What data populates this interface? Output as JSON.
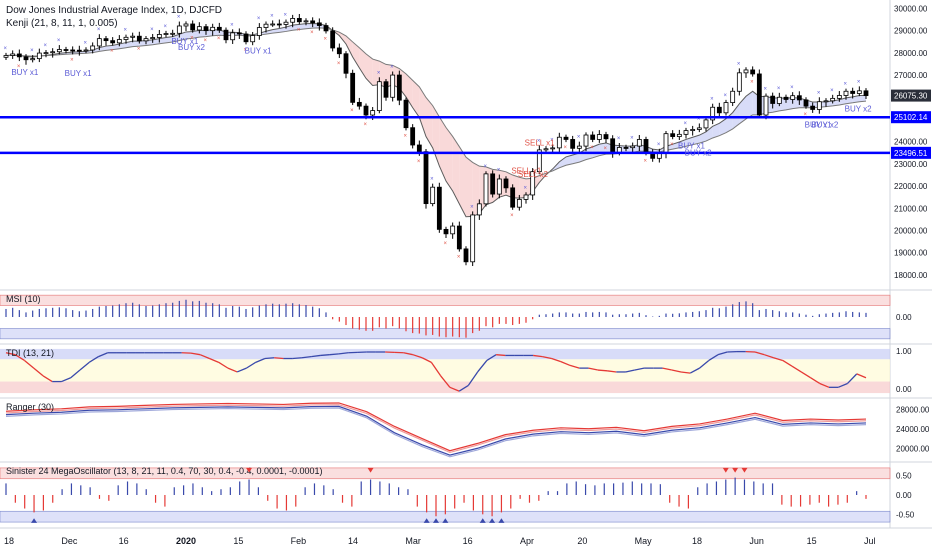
{
  "header": {
    "symbol_line": "Dow Jones Industrial Average Index, 1D, DJCFD",
    "indicator_line": "Kenji (21, 8, 11, 1, 0.005)"
  },
  "colors": {
    "level_line": "#0000ff",
    "buy_signal": "#5b5bd6",
    "sell_signal": "#e0564a",
    "band_blue": "#c8cdf5",
    "band_red": "#f7c9c9",
    "band_yellow": "#fffbd6",
    "line_blue": "#3949ab",
    "line_red": "#e53935",
    "axis_text": "#131722"
  },
  "chart_data": [
    {
      "type": "candlestick",
      "title": "Dow Jones Industrial Average Index, 1D, DJCFD",
      "subtitle": "Kenji (21, 8, 11, 1, 0.005)",
      "x_ticks": [
        "18",
        "Dec",
        "16",
        "2020",
        "15",
        "Feb",
        "14",
        "Mar",
        "16",
        "Apr",
        "20",
        "May",
        "18",
        "Jun",
        "15",
        "Jul"
      ],
      "y_ticks": [
        "30000.00",
        "29000.00",
        "28000.00",
        "27000.00",
        "26075.30",
        "25102.14",
        "24000.00",
        "23496.51",
        "23000.00",
        "22000.00",
        "21000.00",
        "20000.00",
        "19000.00",
        "18000.00"
      ],
      "ylim": [
        17500,
        30200
      ],
      "horizontal_levels": [
        25102.14,
        23496.51
      ],
      "last_price": 26075.3,
      "close_values": [
        27880,
        27950,
        27820,
        27690,
        27740,
        27990,
        28010,
        28050,
        28150,
        28130,
        28120,
        28100,
        28130,
        28310,
        28640,
        28550,
        28450,
        28600,
        28700,
        28750,
        28540,
        28640,
        28690,
        28830,
        28870,
        28880,
        29210,
        29300,
        29030,
        29180,
        29000,
        29150,
        29020,
        28590,
        28900,
        28850,
        28500,
        28780,
        29140,
        29290,
        29300,
        29280,
        29380,
        29550,
        29400,
        29440,
        29350,
        29230,
        28990,
        28220,
        27960,
        27080,
        25770,
        25600,
        25200,
        25400,
        26700,
        26000,
        27000,
        25870,
        24630,
        23850,
        23550,
        21210,
        21950,
        20050,
        19850,
        20200,
        19170,
        18590,
        20700,
        21200,
        22550,
        21640,
        22320,
        21920,
        21050,
        21400,
        21600,
        22650,
        23630,
        23680,
        23720,
        24200,
        24100,
        23700,
        23800,
        24300,
        24100,
        24320,
        24130,
        23500,
        23740,
        23730,
        23800,
        24100,
        23500,
        23250,
        23480,
        24360,
        24230,
        24330,
        24500,
        24550,
        24620,
        24980,
        25550,
        25300,
        25760,
        26270,
        27100,
        27230,
        27050,
        25200,
        26050,
        25720,
        26000,
        25900,
        26070,
        25880,
        25600,
        25450,
        25800,
        25840,
        25950,
        26080,
        26270,
        26170,
        26290,
        26075
      ],
      "kenji_fast_line": {
        "from": 27700,
        "peak": 29350,
        "trough": 21300,
        "end": 25900
      },
      "kenji_slow_line": {
        "from": 27500,
        "peak": 29150,
        "trough": 20900,
        "end": 25700
      },
      "signals": [
        {
          "label": "BUY x1",
          "date": "Nov 18"
        },
        {
          "label": "BUY x1",
          "date": "Dec 1"
        },
        {
          "label": "BUY x1",
          "date": "Dec 24"
        },
        {
          "label": "BUY x2",
          "date": "Dec 26"
        },
        {
          "label": "BUY x1",
          "date": "Jan 14"
        },
        {
          "label": "SELL x1",
          "date": "Mar 23"
        },
        {
          "label": "SELL x2",
          "date": "Mar 24"
        },
        {
          "label": "SELL x1",
          "date": "Mar 25"
        },
        {
          "label": "BUY x1",
          "date": "May 4"
        },
        {
          "label": "BUY x2",
          "date": "May 5"
        },
        {
          "label": "BUY x1",
          "date": "Jun 12"
        },
        {
          "label": "BUY x2",
          "date": "Jun 15"
        },
        {
          "label": "BUY x2",
          "date": "Jul 8"
        }
      ]
    },
    {
      "type": "bar",
      "title": "MSI (10)",
      "y_ticks": [
        "0.00"
      ],
      "ylim": [
        -1.0,
        1.0
      ],
      "bands": [
        {
          "from": 0.5,
          "to": 0.95,
          "color": "red"
        },
        {
          "from": -0.95,
          "to": -0.5,
          "color": "blue"
        }
      ],
      "values_description_free": true,
      "values": [
        0.35,
        0.4,
        0.3,
        0.2,
        0.28,
        0.35,
        0.38,
        0.4,
        0.42,
        0.38,
        0.3,
        0.25,
        0.28,
        0.35,
        0.45,
        0.48,
        0.5,
        0.55,
        0.6,
        0.62,
        0.55,
        0.48,
        0.5,
        0.55,
        0.6,
        0.62,
        0.7,
        0.75,
        0.68,
        0.7,
        0.62,
        0.6,
        0.55,
        0.4,
        0.48,
        0.45,
        0.35,
        0.42,
        0.5,
        0.55,
        0.58,
        0.55,
        0.58,
        0.6,
        0.55,
        0.52,
        0.45,
        0.38,
        0.2,
        -0.1,
        -0.2,
        -0.35,
        -0.5,
        -0.55,
        -0.6,
        -0.6,
        -0.45,
        -0.5,
        -0.4,
        -0.5,
        -0.62,
        -0.7,
        -0.72,
        -0.8,
        -0.78,
        -0.85,
        -0.88,
        -0.85,
        -0.88,
        -0.9,
        -0.7,
        -0.6,
        -0.4,
        -0.45,
        -0.3,
        -0.3,
        -0.35,
        -0.3,
        -0.25,
        -0.1,
        0.1,
        0.12,
        0.15,
        0.2,
        0.2,
        0.15,
        0.15,
        0.22,
        0.2,
        0.22,
        0.2,
        0.1,
        0.12,
        0.12,
        0.15,
        0.18,
        0.08,
        0.02,
        0.05,
        0.15,
        0.14,
        0.16,
        0.2,
        0.22,
        0.25,
        0.3,
        0.4,
        0.38,
        0.45,
        0.55,
        0.65,
        0.68,
        0.6,
        0.3,
        0.35,
        0.3,
        0.25,
        0.2,
        0.2,
        0.15,
        0.1,
        0.05,
        0.12,
        0.15,
        0.18,
        0.2,
        0.25,
        0.22,
        0.2,
        0.18
      ]
    },
    {
      "type": "line",
      "title": "TDI (13, 21)",
      "y_ticks": [
        "1.00",
        "0.00"
      ],
      "ylim": [
        -0.15,
        1.1
      ],
      "bands": [
        {
          "from": 0.78,
          "to": 1.05,
          "color": "blue"
        },
        {
          "from": 0.2,
          "to": 0.78,
          "color": "yellow"
        },
        {
          "from": -0.1,
          "to": 0.2,
          "color": "red"
        }
      ],
      "series": [
        {
          "values": [
            0.95,
            0.9,
            0.75,
            0.55,
            0.35,
            0.2,
            0.2,
            0.3,
            0.5,
            0.7,
            0.85,
            0.95,
            0.95,
            0.95,
            0.95,
            0.95,
            0.95,
            0.95,
            0.95,
            0.95,
            0.94,
            0.9,
            0.8,
            0.7,
            0.55,
            0.45,
            0.55,
            0.7,
            0.8,
            0.82,
            0.8,
            0.8,
            0.82,
            0.85,
            0.88,
            0.9,
            0.92,
            0.95,
            0.96,
            0.97,
            0.97,
            0.97,
            0.96,
            0.95,
            0.9,
            0.82,
            0.7,
            0.35,
            0.05,
            -0.05,
            0.1,
            0.45,
            0.75,
            0.9,
            0.88,
            0.88,
            0.88,
            0.88,
            0.85,
            0.8,
            0.72,
            0.62,
            0.55,
            0.55,
            0.5,
            0.48,
            0.45,
            0.45,
            0.5,
            0.55,
            0.55,
            0.55,
            0.5,
            0.45,
            0.42,
            0.55,
            0.75,
            0.9,
            0.97,
            0.98,
            0.98,
            0.97,
            0.9,
            0.82,
            0.75,
            0.6,
            0.45,
            0.3,
            0.15,
            0.05,
            0.05,
            0.15,
            0.4,
            0.3
          ]
        }
      ]
    },
    {
      "type": "line",
      "title": "Ranger (30)",
      "y_ticks": [
        "28000.00",
        "24000.00",
        "20000.00"
      ],
      "ylim": [
        18000,
        29500
      ],
      "series": [
        {
          "name": "",
          "values": [
            27600,
            27900,
            28100,
            28500,
            28600,
            28800,
            29000,
            29100,
            29200,
            29100,
            29000,
            29250,
            29300,
            27500,
            24500,
            22000,
            19500,
            21000,
            22800,
            23700,
            24200,
            24000,
            24300,
            23600,
            24500,
            25000,
            26000,
            27200,
            25700,
            26000,
            25800,
            26000
          ]
        },
        {
          "name": "",
          "values": [
            26900,
            27200,
            27400,
            27800,
            27900,
            28100,
            28300,
            28400,
            28500,
            28400,
            28300,
            28550,
            28600,
            26600,
            23200,
            20700,
            18600,
            20000,
            21900,
            22900,
            23400,
            23200,
            23500,
            22800,
            23700,
            24200,
            25200,
            26300,
            24900,
            25200,
            25000,
            25200
          ]
        }
      ]
    },
    {
      "type": "bar",
      "title": "Sinister 24 MegaOscillator (13, 8, 21, 11, 0.4, 70, 30, 0.4, -0.4, 0.0001, -0.0001)",
      "y_ticks": [
        "0.50",
        "0.00",
        "-0.50"
      ],
      "ylim": [
        -0.75,
        0.75
      ],
      "bands": [
        {
          "from": 0.42,
          "to": 0.7,
          "color": "red"
        },
        {
          "from": -0.7,
          "to": -0.42,
          "color": "blue"
        }
      ],
      "values": [
        0.3,
        -0.2,
        -0.35,
        -0.45,
        -0.4,
        -0.2,
        0.15,
        0.3,
        0.25,
        0.2,
        -0.1,
        -0.15,
        0.25,
        0.35,
        0.3,
        0.15,
        -0.2,
        -0.3,
        0.2,
        0.25,
        0.3,
        0.2,
        0.1,
        0.15,
        0.2,
        0.35,
        0.4,
        0.2,
        -0.15,
        -0.35,
        -0.4,
        -0.3,
        0.2,
        0.3,
        0.25,
        0.15,
        -0.2,
        -0.3,
        0.35,
        0.4,
        0.35,
        0.3,
        0.2,
        0.15,
        -0.3,
        -0.45,
        -0.55,
        -0.5,
        -0.35,
        -0.2,
        -0.4,
        -0.5,
        -0.55,
        -0.45,
        -0.35,
        -0.1,
        -0.2,
        -0.15,
        0.1,
        0.1,
        0.3,
        0.35,
        0.28,
        0.25,
        0.3,
        0.3,
        0.32,
        0.35,
        0.3,
        0.3,
        0.28,
        -0.2,
        -0.3,
        -0.35,
        0.2,
        0.3,
        0.35,
        0.4,
        0.45,
        0.4,
        0.35,
        0.3,
        0.3,
        -0.25,
        -0.3,
        -0.3,
        -0.25,
        -0.2,
        -0.3,
        -0.25,
        -0.2,
        0.1,
        -0.1
      ]
    }
  ],
  "x_axis_labels": [
    "18",
    "Dec",
    "16",
    "2020",
    "15",
    "Feb",
    "14",
    "Mar",
    "16",
    "Apr",
    "20",
    "May",
    "18",
    "Jun",
    "15",
    "Jul"
  ],
  "pane_titles": [
    "MSI (10)",
    "TDI (13, 21)",
    "Ranger (30)",
    "Sinister 24 MegaOscillator (13, 8, 21, 11, 0.4, 70, 30, 0.4, -0.4, 0.0001, -0.0001)"
  ]
}
